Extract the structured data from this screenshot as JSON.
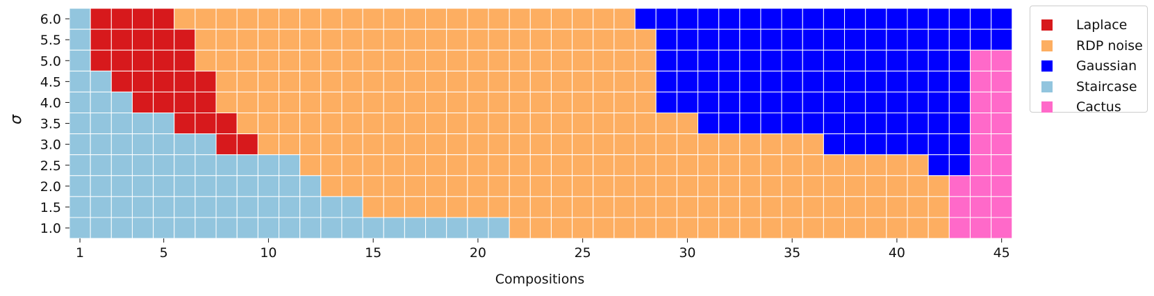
{
  "chart_data": {
    "type": "heatmap",
    "title": "",
    "xlabel": "Compositions",
    "ylabel": "σ",
    "x_range": [
      1,
      45
    ],
    "x_ticks": [
      1,
      5,
      10,
      15,
      20,
      25,
      30,
      35,
      40,
      45
    ],
    "y_categories": [
      "6.0",
      "5.5",
      "5.0",
      "4.5",
      "4.0",
      "3.5",
      "3.0",
      "2.5",
      "2.0",
      "1.5",
      "1.0"
    ],
    "legend_placement": "upper-right-outside",
    "legend": [
      {
        "key": "L",
        "label": "Laplace",
        "color": "#d7191c"
      },
      {
        "key": "R",
        "label": "RDP noise",
        "color": "#fdae61"
      },
      {
        "key": "G",
        "label": "Gaussian",
        "color": "#0000ff"
      },
      {
        "key": "S",
        "label": "Staircase",
        "color": "#92c5de"
      },
      {
        "key": "C",
        "label": "Cactus",
        "color": "#ff69c9"
      }
    ],
    "cell_border_color": "#ffffff",
    "rows": [
      {
        "sigma": "6.0",
        "runs": [
          [
            "S",
            1,
            1
          ],
          [
            "L",
            2,
            5
          ],
          [
            "R",
            6,
            27
          ],
          [
            "G",
            28,
            45
          ]
        ]
      },
      {
        "sigma": "5.5",
        "runs": [
          [
            "S",
            1,
            1
          ],
          [
            "L",
            2,
            6
          ],
          [
            "R",
            7,
            28
          ],
          [
            "G",
            29,
            45
          ]
        ]
      },
      {
        "sigma": "5.0",
        "runs": [
          [
            "S",
            1,
            1
          ],
          [
            "L",
            2,
            6
          ],
          [
            "R",
            7,
            28
          ],
          [
            "G",
            29,
            43
          ],
          [
            "C",
            44,
            45
          ]
        ]
      },
      {
        "sigma": "4.5",
        "runs": [
          [
            "S",
            1,
            2
          ],
          [
            "L",
            3,
            7
          ],
          [
            "R",
            8,
            28
          ],
          [
            "G",
            29,
            43
          ],
          [
            "C",
            44,
            45
          ]
        ]
      },
      {
        "sigma": "4.0",
        "runs": [
          [
            "S",
            1,
            3
          ],
          [
            "L",
            4,
            7
          ],
          [
            "R",
            8,
            28
          ],
          [
            "G",
            29,
            43
          ],
          [
            "C",
            44,
            45
          ]
        ]
      },
      {
        "sigma": "3.5",
        "runs": [
          [
            "S",
            1,
            5
          ],
          [
            "L",
            6,
            8
          ],
          [
            "R",
            9,
            30
          ],
          [
            "G",
            31,
            43
          ],
          [
            "C",
            44,
            45
          ]
        ]
      },
      {
        "sigma": "3.0",
        "runs": [
          [
            "S",
            1,
            7
          ],
          [
            "L",
            8,
            9
          ],
          [
            "R",
            10,
            36
          ],
          [
            "G",
            37,
            43
          ],
          [
            "C",
            44,
            45
          ]
        ]
      },
      {
        "sigma": "2.5",
        "runs": [
          [
            "S",
            1,
            11
          ],
          [
            "R",
            12,
            41
          ],
          [
            "G",
            42,
            43
          ],
          [
            "C",
            44,
            45
          ]
        ]
      },
      {
        "sigma": "2.0",
        "runs": [
          [
            "S",
            1,
            12
          ],
          [
            "R",
            13,
            42
          ],
          [
            "C",
            43,
            45
          ]
        ]
      },
      {
        "sigma": "1.5",
        "runs": [
          [
            "S",
            1,
            14
          ],
          [
            "R",
            15,
            42
          ],
          [
            "C",
            43,
            45
          ]
        ]
      },
      {
        "sigma": "1.0",
        "runs": [
          [
            "S",
            1,
            21
          ],
          [
            "R",
            22,
            42
          ],
          [
            "C",
            43,
            45
          ]
        ]
      }
    ]
  }
}
